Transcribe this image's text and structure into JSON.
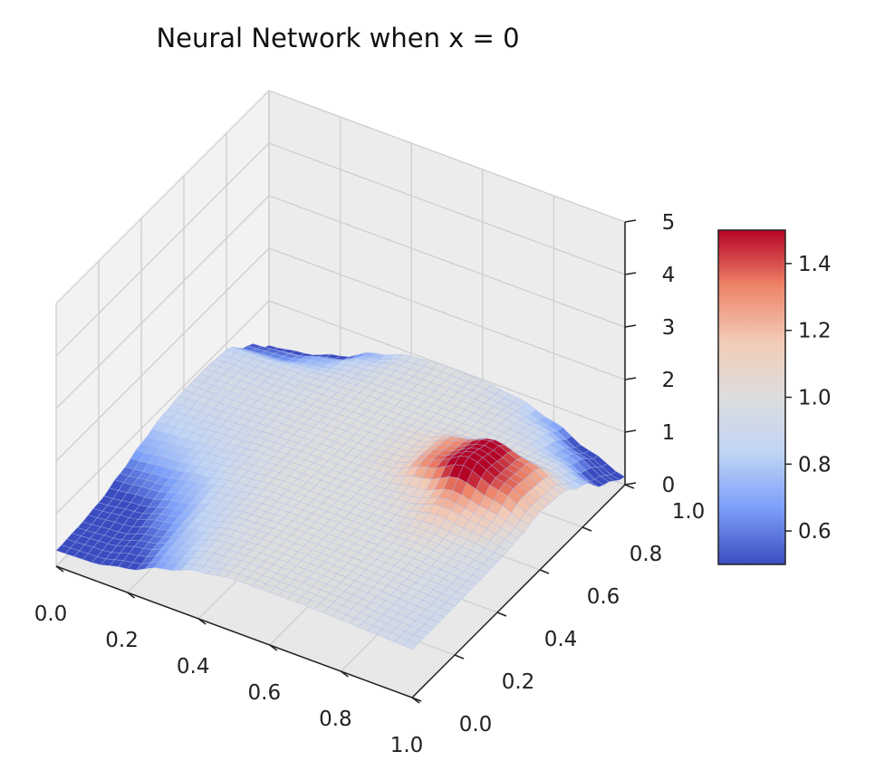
{
  "chart_data": {
    "type": "surface3d",
    "title": "Neural Network when x = 0",
    "xlabel": "",
    "ylabel": "",
    "zlabel": "",
    "xlim": [
      0,
      1
    ],
    "ylim": [
      0,
      1
    ],
    "zlim": [
      0,
      5
    ],
    "x_ticks": [
      "0.0",
      "0.2",
      "0.4",
      "0.6",
      "0.8",
      "1.0"
    ],
    "y_ticks": [
      "0.0",
      "0.2",
      "0.4",
      "0.6",
      "0.8",
      "1.0"
    ],
    "z_ticks": [
      "0",
      "1",
      "2",
      "3",
      "4",
      "5"
    ],
    "grid": true,
    "colormap": "coolwarm",
    "colorbar": {
      "range": [
        0.5,
        1.5
      ],
      "ticks": [
        "0.6",
        "0.8",
        "1.0",
        "1.2",
        "1.4"
      ],
      "colors": [
        "#3b4cc0",
        "#7b9ff9",
        "#c0d4f5",
        "#dddddd",
        "#f2cbb7",
        "#ee8468",
        "#b40426"
      ]
    },
    "surface_grid": {
      "x": [
        0.0,
        0.1,
        0.2,
        0.3,
        0.4,
        0.5,
        0.6,
        0.7,
        0.8,
        0.9,
        1.0
      ],
      "y": [
        0.0,
        0.1,
        0.2,
        0.3,
        0.4,
        0.5,
        0.6,
        0.7,
        0.8,
        0.9,
        1.0
      ],
      "z": [
        [
          0.3,
          0.32,
          0.45,
          0.7,
          0.9,
          1.0,
          1.0,
          1.0,
          0.98,
          0.95,
          0.92
        ],
        [
          0.33,
          0.38,
          0.55,
          0.78,
          0.95,
          1.0,
          1.0,
          1.0,
          0.98,
          0.95,
          0.92
        ],
        [
          0.4,
          0.48,
          0.65,
          0.85,
          0.97,
          1.0,
          1.0,
          1.0,
          0.99,
          0.96,
          0.93
        ],
        [
          0.55,
          0.62,
          0.75,
          0.9,
          0.98,
          1.0,
          1.0,
          1.0,
          1.0,
          0.97,
          0.94
        ],
        [
          0.72,
          0.78,
          0.86,
          0.95,
          1.0,
          1.0,
          1.0,
          1.0,
          1.05,
          1.0,
          0.96
        ],
        [
          0.85,
          0.88,
          0.92,
          0.97,
          1.0,
          1.0,
          1.0,
          1.05,
          1.25,
          1.15,
          1.0
        ],
        [
          0.92,
          0.93,
          0.95,
          0.98,
          1.0,
          1.0,
          1.05,
          1.35,
          1.65,
          1.4,
          1.1
        ],
        [
          0.93,
          0.94,
          0.96,
          0.98,
          1.0,
          1.0,
          1.05,
          1.3,
          1.55,
          1.35,
          1.05
        ],
        [
          0.88,
          0.9,
          0.93,
          0.97,
          1.0,
          1.0,
          1.0,
          1.0,
          1.0,
          0.95,
          0.8
        ],
        [
          0.55,
          0.6,
          0.75,
          0.9,
          0.98,
          1.0,
          1.0,
          0.98,
          0.9,
          0.7,
          0.4
        ],
        [
          0.15,
          0.25,
          0.45,
          0.75,
          0.95,
          1.0,
          0.98,
          0.9,
          0.7,
          0.4,
          0.15
        ]
      ]
    }
  }
}
